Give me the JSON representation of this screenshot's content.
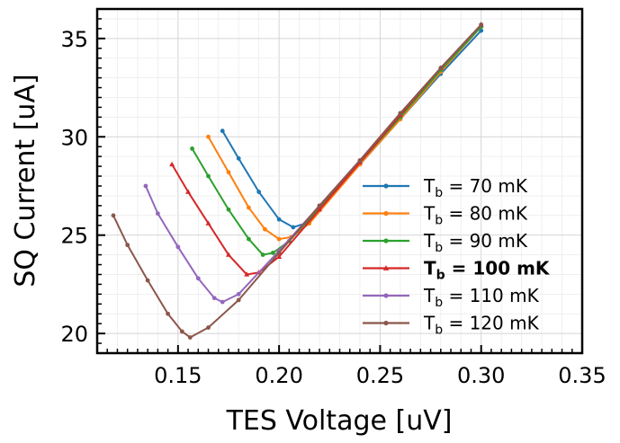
{
  "chart_data": {
    "type": "line",
    "title": "",
    "xlabel": "TES Voltage [uV]",
    "ylabel": "SQ Current [uA]",
    "xlim": [
      0.11,
      0.35
    ],
    "ylim": [
      19.0,
      36.5
    ],
    "xticks": [
      0.15,
      0.2,
      0.25,
      0.3,
      0.35
    ],
    "xtick_labels": [
      "0.15",
      "0.20",
      "0.25",
      "0.30",
      "0.35"
    ],
    "yticks": [
      20,
      25,
      30,
      35
    ],
    "ytick_labels": [
      "20",
      "25",
      "30",
      "35"
    ],
    "grid": true,
    "legend_position": "lower-right",
    "series": [
      {
        "name": "T_b = 70 mK",
        "legend_main": "T",
        "legend_sub": "b",
        "legend_rest": " = 70 mK",
        "bold": false,
        "color": "#1f77b4",
        "marker": "dot",
        "x": [
          0.172,
          0.18,
          0.19,
          0.2,
          0.207,
          0.213,
          0.22,
          0.24,
          0.26,
          0.28,
          0.3
        ],
        "y": [
          30.3,
          28.9,
          27.2,
          25.8,
          25.4,
          25.6,
          26.3,
          28.6,
          30.9,
          33.2,
          35.4
        ]
      },
      {
        "name": "T_b = 80 mK",
        "legend_main": "T",
        "legend_sub": "b",
        "legend_rest": " = 80 mK",
        "bold": false,
        "color": "#ff7f0e",
        "marker": "dot",
        "x": [
          0.165,
          0.175,
          0.185,
          0.193,
          0.2,
          0.206,
          0.215,
          0.24,
          0.26,
          0.28,
          0.3
        ],
        "y": [
          30.0,
          28.2,
          26.4,
          25.3,
          24.8,
          24.9,
          25.6,
          28.6,
          30.9,
          33.3,
          35.6
        ]
      },
      {
        "name": "T_b = 90 mK",
        "legend_main": "T",
        "legend_sub": "b",
        "legend_rest": " = 90 mK",
        "bold": false,
        "color": "#2ca02c",
        "marker": "dot",
        "x": [
          0.157,
          0.165,
          0.175,
          0.185,
          0.192,
          0.197,
          0.205,
          0.22,
          0.24,
          0.26,
          0.28,
          0.3
        ],
        "y": [
          29.4,
          28.0,
          26.3,
          24.8,
          24.0,
          24.1,
          24.7,
          26.4,
          28.7,
          31.0,
          33.4,
          35.6
        ]
      },
      {
        "name": "T_b = 100 mK",
        "legend_main": "T",
        "legend_sub": "b",
        "legend_rest": " = 100 mK",
        "bold": true,
        "color": "#d62728",
        "marker": "triangle",
        "x": [
          0.147,
          0.155,
          0.165,
          0.175,
          0.184,
          0.19,
          0.2,
          0.22,
          0.24,
          0.26,
          0.28,
          0.3
        ],
        "y": [
          28.6,
          27.2,
          25.6,
          24.0,
          23.0,
          23.1,
          23.9,
          26.3,
          28.7,
          31.1,
          33.5,
          35.7
        ]
      },
      {
        "name": "T_b = 110 mK",
        "legend_main": "T",
        "legend_sub": "b",
        "legend_rest": " = 110 mK",
        "bold": false,
        "color": "#9467bd",
        "marker": "dot",
        "x": [
          0.134,
          0.14,
          0.15,
          0.16,
          0.168,
          0.172,
          0.18,
          0.2,
          0.22,
          0.24,
          0.26,
          0.28,
          0.3
        ],
        "y": [
          27.5,
          26.1,
          24.4,
          22.8,
          21.8,
          21.6,
          22.0,
          24.2,
          26.5,
          28.8,
          31.2,
          33.5,
          35.7
        ]
      },
      {
        "name": "T_b = 120 mK",
        "legend_main": "T",
        "legend_sub": "b",
        "legend_rest": " = 120 mK",
        "bold": false,
        "color": "#8c564b",
        "marker": "dot",
        "x": [
          0.118,
          0.125,
          0.135,
          0.145,
          0.152,
          0.156,
          0.165,
          0.18,
          0.2,
          0.22,
          0.24,
          0.26,
          0.28,
          0.3
        ],
        "y": [
          26.0,
          24.5,
          22.7,
          21.0,
          20.1,
          19.8,
          20.3,
          21.7,
          24.1,
          26.5,
          28.8,
          31.2,
          33.5,
          35.7
        ]
      }
    ]
  }
}
